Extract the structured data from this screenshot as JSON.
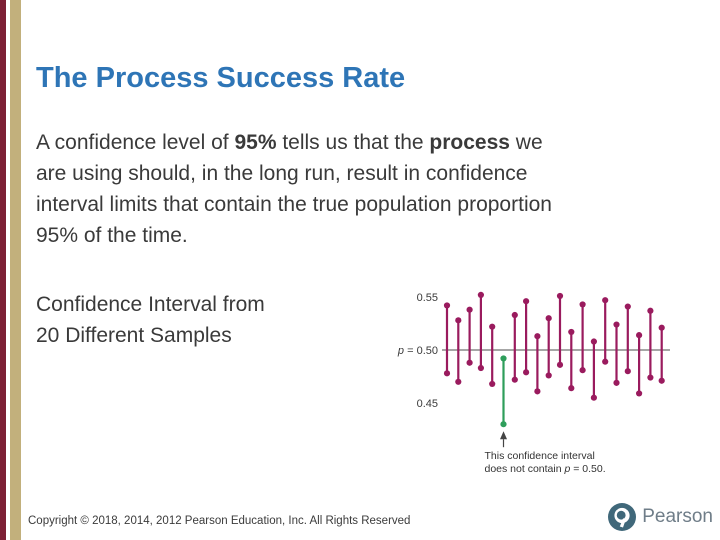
{
  "theme": {
    "title_color": "#2E75B6",
    "body_color": "#3A3A3A",
    "bar_maroon": "#7D2035",
    "bar_tan": "#C2B07C",
    "logo_color": "#40687A",
    "wordmark_color": "#6F7D88",
    "copyright_color": "#3B3B3B"
  },
  "slide": {
    "title": "The Process Success Rate",
    "body_lines": [
      [
        {
          "t": "A confidence level of "
        },
        {
          "t": "95%",
          "b": true
        },
        {
          "t": " tells us that the "
        },
        {
          "t": "process",
          "b": true
        },
        {
          "t": " we"
        }
      ],
      [
        {
          "t": "are using should, in the long run, result in confidence"
        }
      ],
      [
        {
          "t": "interval limits that contain the true population proportion"
        }
      ],
      [
        {
          "t": "95% of the time."
        }
      ]
    ],
    "caption_lines": [
      [
        {
          "t": "Confidence Interval from"
        }
      ],
      [
        {
          "t": "20 Different Samples"
        }
      ]
    ],
    "copyright": "Copyright © 2018, 2014, 2012 Pearson Education, Inc. All Rights Reserved"
  },
  "branding": {
    "logo_text": "Pearson"
  },
  "chart_data": {
    "type": "scatter",
    "subtype": "confidence-intervals",
    "title": "Confidence Interval from 20 Different Samples",
    "xlabel": "",
    "ylabel": "",
    "ylim": [
      0.42,
      0.57
    ],
    "grid": false,
    "n_samples": 20,
    "y_ticks": [
      {
        "label": "0.55",
        "value": 0.55
      },
      {
        "label": "0.45",
        "value": 0.45
      }
    ],
    "reference_line": {
      "label_var": "p",
      "label_rest": " = 0.50",
      "value": 0.5
    },
    "intervals": [
      {
        "sample": 1,
        "lo": 0.478,
        "hi": 0.542,
        "contains_p": true
      },
      {
        "sample": 2,
        "lo": 0.47,
        "hi": 0.528,
        "contains_p": true
      },
      {
        "sample": 3,
        "lo": 0.488,
        "hi": 0.538,
        "contains_p": true
      },
      {
        "sample": 4,
        "lo": 0.483,
        "hi": 0.552,
        "contains_p": true
      },
      {
        "sample": 5,
        "lo": 0.468,
        "hi": 0.522,
        "contains_p": true
      },
      {
        "sample": 6,
        "lo": 0.43,
        "hi": 0.492,
        "contains_p": false
      },
      {
        "sample": 7,
        "lo": 0.472,
        "hi": 0.533,
        "contains_p": true
      },
      {
        "sample": 8,
        "lo": 0.479,
        "hi": 0.546,
        "contains_p": true
      },
      {
        "sample": 9,
        "lo": 0.461,
        "hi": 0.513,
        "contains_p": true
      },
      {
        "sample": 10,
        "lo": 0.476,
        "hi": 0.53,
        "contains_p": true
      },
      {
        "sample": 11,
        "lo": 0.486,
        "hi": 0.551,
        "contains_p": true
      },
      {
        "sample": 12,
        "lo": 0.464,
        "hi": 0.517,
        "contains_p": true
      },
      {
        "sample": 13,
        "lo": 0.481,
        "hi": 0.543,
        "contains_p": true
      },
      {
        "sample": 14,
        "lo": 0.455,
        "hi": 0.508,
        "contains_p": true
      },
      {
        "sample": 15,
        "lo": 0.489,
        "hi": 0.547,
        "contains_p": true
      },
      {
        "sample": 16,
        "lo": 0.469,
        "hi": 0.524,
        "contains_p": true
      },
      {
        "sample": 17,
        "lo": 0.48,
        "hi": 0.541,
        "contains_p": true
      },
      {
        "sample": 18,
        "lo": 0.459,
        "hi": 0.514,
        "contains_p": true
      },
      {
        "sample": 19,
        "lo": 0.474,
        "hi": 0.537,
        "contains_p": true
      },
      {
        "sample": 20,
        "lo": 0.471,
        "hi": 0.521,
        "contains_p": true
      }
    ],
    "colors": {
      "interval": "#9A1B5E",
      "miss": "#2E9E5B",
      "ref_line": "#4D4D4D",
      "arrow": "#444444"
    },
    "annotation": {
      "line1": "This confidence interval",
      "line2_pre": "does not contain ",
      "line2_var": "p",
      "line2_post": " = 0.50."
    }
  }
}
